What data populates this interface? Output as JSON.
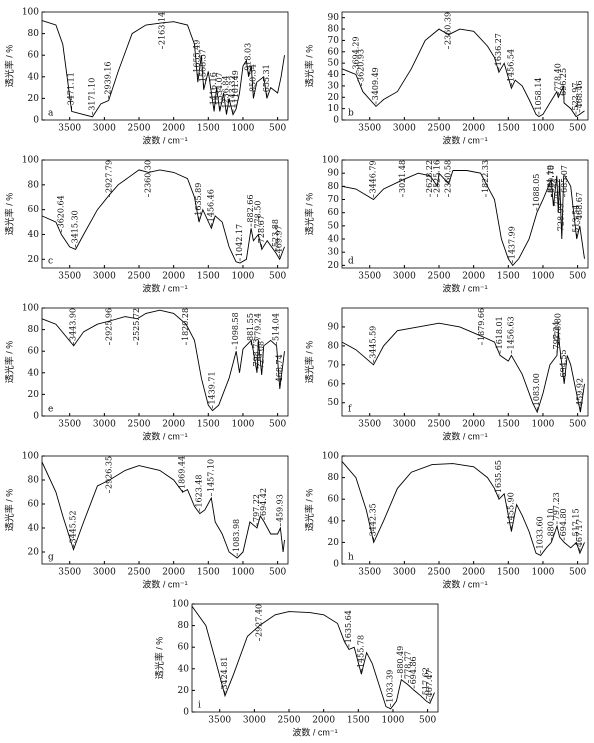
{
  "chart_data": [
    {
      "type": "line",
      "label": "a",
      "xlabel": "波数 / cm⁻¹",
      "ylabel": "透光率 / %",
      "xlim": [
        3900,
        350
      ],
      "ylim": [
        0,
        100
      ],
      "xticks": [
        3500,
        3000,
        2500,
        2000,
        1500,
        1000,
        500
      ],
      "yticks": [
        0,
        20,
        40,
        60,
        80,
        100
      ],
      "x": [
        3900,
        3700,
        3600,
        3471,
        3300,
        3171,
        3050,
        2939,
        2800,
        2600,
        2400,
        2163,
        2000,
        1800,
        1700,
        1651,
        1600,
        1567,
        1500,
        1416,
        1380,
        1334,
        1280,
        1237,
        1200,
        1143,
        1101,
        1050,
        1000,
        950,
        918,
        880,
        850,
        800,
        700,
        655,
        600,
        500,
        450,
        400
      ],
      "values": [
        92,
        88,
        70,
        8,
        5,
        3,
        15,
        18,
        45,
        80,
        88,
        90,
        91,
        88,
        70,
        35,
        60,
        28,
        45,
        8,
        30,
        8,
        25,
        5,
        20,
        5,
        10,
        25,
        50,
        55,
        40,
        50,
        20,
        35,
        40,
        20,
        30,
        25,
        40,
        60
      ],
      "peaks": [
        {
          "value": 3471.11,
          "label": "3471.11"
        },
        {
          "value": 3171.1,
          "label": "3171.10"
        },
        {
          "value": 2939.16,
          "label": "2939.16"
        },
        {
          "value": 2163.14,
          "label": "2163.14"
        },
        {
          "value": 1655.49,
          "label": "1655.49"
        },
        {
          "value": 1568.57,
          "label": "1568.57"
        },
        {
          "value": 1416.16,
          "label": "1416.16"
        },
        {
          "value": 1334.07,
          "label": "1334.07"
        },
        {
          "value": 1236.84,
          "label": "1236.84"
        },
        {
          "value": 1143.32,
          "label": "1143.32"
        },
        {
          "value": 1101.49,
          "label": "1101.49"
        },
        {
          "value": 918.03,
          "label": "918.03"
        },
        {
          "value": 850.34,
          "label": "850.34"
        },
        {
          "value": 655.31,
          "label": "655.31"
        }
      ]
    },
    {
      "type": "line",
      "label": "b",
      "xlabel": "波数 / cm⁻¹",
      "ylabel": "透光率 / %",
      "xlim": [
        3900,
        350
      ],
      "ylim": [
        0,
        95
      ],
      "xticks": [
        3500,
        3000,
        2500,
        2000,
        1500,
        1000,
        500
      ],
      "yticks": [
        0,
        10,
        20,
        30,
        40,
        50,
        60,
        70,
        80,
        90
      ],
      "x": [
        3900,
        3700,
        3600,
        3409,
        3300,
        3100,
        2900,
        2700,
        2500,
        2360,
        2200,
        2000,
        1800,
        1700,
        1636,
        1560,
        1456,
        1400,
        1300,
        1200,
        1100,
        1058,
        1000,
        900,
        800,
        778,
        700,
        696,
        600,
        522,
        468,
        400
      ],
      "values": [
        45,
        40,
        25,
        12,
        18,
        25,
        45,
        70,
        80,
        75,
        80,
        78,
        65,
        55,
        42,
        50,
        28,
        35,
        30,
        18,
        5,
        3,
        5,
        15,
        25,
        20,
        30,
        15,
        10,
        3,
        5,
        8
      ],
      "peaks": [
        {
          "value": 3694.29,
          "label": "3694.29"
        },
        {
          "value": 3620.93,
          "label": "3620.93"
        },
        {
          "value": 3409.49,
          "label": "3409.49"
        },
        {
          "value": 2360.39,
          "label": "2360.39"
        },
        {
          "value": 1636.27,
          "label": "1636.27"
        },
        {
          "value": 1456.54,
          "label": "1456.54"
        },
        {
          "value": 1058.14,
          "label": "1058.14"
        },
        {
          "value": 778.4,
          "label": "778.40"
        },
        {
          "value": 696.25,
          "label": "696.25"
        },
        {
          "value": 522.97,
          "label": "522.97"
        },
        {
          "value": 468.46,
          "label": "468.46"
        }
      ]
    },
    {
      "type": "line",
      "label": "c",
      "xlabel": "波数 / cm⁻¹",
      "ylabel": "透光率 / %",
      "xlim": [
        3900,
        350
      ],
      "ylim": [
        13,
        100
      ],
      "xticks": [
        3500,
        3000,
        2500,
        2000,
        1500,
        1000,
        500
      ],
      "yticks": [
        20,
        40,
        60,
        80,
        100
      ],
      "x": [
        3900,
        3700,
        3620,
        3500,
        3415,
        3300,
        3100,
        2927,
        2800,
        2500,
        2360,
        2200,
        2000,
        1800,
        1700,
        1635,
        1580,
        1456,
        1400,
        1300,
        1200,
        1100,
        1042,
        950,
        882,
        850,
        778,
        728,
        650,
        523,
        470,
        400
      ],
      "values": [
        55,
        50,
        40,
        30,
        28,
        40,
        60,
        72,
        80,
        92,
        90,
        92,
        90,
        85,
        70,
        50,
        60,
        45,
        55,
        50,
        30,
        18,
        17,
        20,
        45,
        35,
        40,
        28,
        35,
        25,
        20,
        30
      ],
      "peaks": [
        {
          "value": 3620.64,
          "label": "3620.64"
        },
        {
          "value": 3415.3,
          "label": "3415.30"
        },
        {
          "value": 2927.79,
          "label": "2927.79"
        },
        {
          "value": 2360.3,
          "label": "2360.30"
        },
        {
          "value": 1635.89,
          "label": "1635.89"
        },
        {
          "value": 1456.46,
          "label": "1456.46"
        },
        {
          "value": 1042.17,
          "label": "1042.17"
        },
        {
          "value": 882.66,
          "label": "882.66"
        },
        {
          "value": 778.5,
          "label": "778.50"
        },
        {
          "value": 728.67,
          "label": "728.67"
        },
        {
          "value": 523.88,
          "label": "523.88"
        },
        {
          "value": 469.97,
          "label": "469.97"
        }
      ]
    },
    {
      "type": "line",
      "label": "d",
      "xlabel": "波数 / cm⁻¹",
      "ylabel": "透光率 / %",
      "xlim": [
        3900,
        350
      ],
      "ylim": [
        18,
        100
      ],
      "xticks": [
        3500,
        3000,
        2500,
        2000,
        1500,
        1000,
        500
      ],
      "yticks": [
        20,
        30,
        40,
        50,
        60,
        70,
        80,
        90,
        100
      ],
      "x": [
        3900,
        3700,
        3446,
        3300,
        3021,
        2800,
        2628,
        2525,
        2500,
        2360,
        2300,
        2100,
        1900,
        1822,
        1700,
        1600,
        1500,
        1437,
        1350,
        1200,
        1088,
        1000,
        881,
        850,
        800,
        779,
        760,
        728,
        700,
        685,
        600,
        513,
        468,
        400
      ],
      "values": [
        80,
        78,
        70,
        78,
        85,
        90,
        88,
        80,
        90,
        82,
        92,
        92,
        90,
        82,
        70,
        40,
        25,
        20,
        25,
        40,
        60,
        70,
        85,
        65,
        88,
        60,
        85,
        40,
        88,
        88,
        80,
        40,
        50,
        25
      ],
      "peaks": [
        {
          "value": 3446.79,
          "label": "3446.79"
        },
        {
          "value": 3021.48,
          "label": "3021.48"
        },
        {
          "value": 2628.22,
          "label": "2628.22"
        },
        {
          "value": 2525.16,
          "label": "2525.16"
        },
        {
          "value": 2360.58,
          "label": "2360.58"
        },
        {
          "value": 1822.33,
          "label": "1822.33"
        },
        {
          "value": 1437.99,
          "label": "1437.99"
        },
        {
          "value": 1088.05,
          "label": "1088.05"
        },
        {
          "value": 881.19,
          "label": "881.19"
        },
        {
          "value": 869.7,
          "label": "869.70"
        },
        {
          "value": 779.22,
          "label": "779.22"
        },
        {
          "value": 728.99,
          "label": "728.99"
        },
        {
          "value": 685.07,
          "label": "685.07"
        },
        {
          "value": 513.54,
          "label": "513.54"
        },
        {
          "value": 468.67,
          "label": "468.67"
        }
      ]
    },
    {
      "type": "line",
      "label": "e",
      "xlabel": "波数 / cm⁻¹",
      "ylabel": "透光率 / %",
      "xlim": [
        3900,
        350
      ],
      "ylim": [
        0,
        100
      ],
      "xticks": [
        3500,
        3000,
        2500,
        2000,
        1500,
        1000,
        500
      ],
      "yticks": [
        0,
        20,
        40,
        60,
        80,
        100
      ],
      "x": [
        3900,
        3700,
        3443,
        3300,
        3100,
        2925,
        2700,
        2525,
        2400,
        2200,
        2000,
        1820,
        1700,
        1600,
        1500,
        1439,
        1350,
        1200,
        1098,
        1050,
        1000,
        881,
        850,
        798,
        779,
        729,
        700,
        600,
        514,
        468,
        400
      ],
      "values": [
        90,
        85,
        65,
        78,
        85,
        88,
        92,
        90,
        95,
        98,
        95,
        85,
        70,
        35,
        10,
        5,
        10,
        35,
        60,
        40,
        62,
        70,
        60,
        40,
        70,
        38,
        65,
        70,
        65,
        25,
        60
      ],
      "peaks": [
        {
          "value": 3443.9,
          "label": "3443.90"
        },
        {
          "value": 2925.96,
          "label": "2925.96"
        },
        {
          "value": 2525.72,
          "label": "2525.72"
        },
        {
          "value": 1820.28,
          "label": "1820.28"
        },
        {
          "value": 1439.71,
          "label": "1439.71"
        },
        {
          "value": 1098.58,
          "label": "1098.58"
        },
        {
          "value": 881.55,
          "label": "881.55"
        },
        {
          "value": 798.73,
          "label": "798.73"
        },
        {
          "value": 779.24,
          "label": "779.24"
        },
        {
          "value": 729.08,
          "label": "729.08"
        },
        {
          "value": 514.04,
          "label": "514.04"
        },
        {
          "value": 468.74,
          "label": "468.74"
        }
      ]
    },
    {
      "type": "line",
      "label": "f",
      "xlabel": "波数 / cm⁻¹",
      "ylabel": "透光率 / %",
      "xlim": [
        3900,
        350
      ],
      "ylim": [
        43,
        100
      ],
      "xticks": [
        3500,
        3000,
        2500,
        2000,
        1500,
        1000,
        500
      ],
      "yticks": [
        50,
        60,
        70,
        80,
        90
      ],
      "x": [
        3900,
        3700,
        3445,
        3300,
        3100,
        2800,
        2500,
        2200,
        1879,
        1700,
        1618,
        1500,
        1456,
        1300,
        1150,
        1083,
        1000,
        900,
        797,
        778,
        760,
        694,
        650,
        600,
        459,
        400
      ],
      "values": [
        82,
        78,
        70,
        80,
        88,
        90,
        92,
        90,
        85,
        82,
        75,
        72,
        75,
        65,
        50,
        45,
        55,
        70,
        75,
        88,
        80,
        60,
        75,
        70,
        45,
        60
      ],
      "peaks": [
        {
          "value": 3445.59,
          "label": "3445.59"
        },
        {
          "value": 1879.66,
          "label": "1879.66"
        },
        {
          "value": 1618.01,
          "label": "1618.01"
        },
        {
          "value": 1456.63,
          "label": "1456.63"
        },
        {
          "value": 1083,
          "label": "1083.00"
        },
        {
          "value": 797.24,
          "label": "797.24"
        },
        {
          "value": 778.8,
          "label": "778.80"
        },
        {
          "value": 694.55,
          "label": "694.55"
        },
        {
          "value": 459.92,
          "label": "459.92"
        }
      ]
    },
    {
      "type": "line",
      "label": "g",
      "xlabel": "波数 / cm⁻¹",
      "ylabel": "透光率 / %",
      "xlim": [
        3900,
        350
      ],
      "ylim": [
        10,
        100
      ],
      "xticks": [
        3500,
        3000,
        2500,
        2000,
        1500,
        1000,
        500
      ],
      "yticks": [
        20,
        40,
        60,
        80,
        100
      ],
      "x": [
        3900,
        3700,
        3600,
        3445,
        3300,
        3100,
        2926,
        2700,
        2500,
        2200,
        2000,
        1869,
        1800,
        1700,
        1623,
        1550,
        1457,
        1400,
        1300,
        1200,
        1083,
        1000,
        900,
        797,
        750,
        694,
        600,
        500,
        459,
        420,
        400
      ],
      "values": [
        95,
        70,
        50,
        22,
        45,
        75,
        80,
        88,
        92,
        88,
        80,
        70,
        72,
        58,
        52,
        55,
        65,
        45,
        35,
        20,
        15,
        20,
        45,
        40,
        50,
        45,
        35,
        35,
        40,
        20,
        30
      ],
      "peaks": [
        {
          "value": 3445.52,
          "label": "3445.52"
        },
        {
          "value": 2926.35,
          "label": "2926.35"
        },
        {
          "value": 1869.44,
          "label": "1869.44"
        },
        {
          "value": 1623.48,
          "label": "1623.48"
        },
        {
          "value": 1457.1,
          "label": "1457.10"
        },
        {
          "value": 1083.98,
          "label": "1083.98"
        },
        {
          "value": 797.22,
          "label": "797.22"
        },
        {
          "value": 694.42,
          "label": "694.42"
        },
        {
          "value": 459.93,
          "label": "459.93"
        }
      ]
    },
    {
      "type": "line",
      "label": "h",
      "xlabel": "波数 / cm⁻¹",
      "ylabel": "透光率 / %",
      "xlim": [
        3900,
        350
      ],
      "ylim": [
        0,
        100
      ],
      "xticks": [
        3500,
        3000,
        2500,
        2000,
        1500,
        1000,
        500
      ],
      "yticks": [
        0,
        20,
        40,
        60,
        80,
        100
      ],
      "x": [
        3900,
        3700,
        3550,
        3442,
        3300,
        3100,
        2900,
        2600,
        2300,
        2000,
        1800,
        1700,
        1635,
        1560,
        1455,
        1380,
        1300,
        1200,
        1100,
        1033,
        950,
        880,
        797,
        760,
        694,
        600,
        517,
        467,
        400
      ],
      "values": [
        95,
        80,
        50,
        20,
        40,
        70,
        85,
        92,
        93,
        90,
        80,
        70,
        60,
        65,
        30,
        55,
        45,
        30,
        10,
        8,
        15,
        20,
        35,
        25,
        20,
        15,
        20,
        10,
        20
      ],
      "peaks": [
        {
          "value": 3442.35,
          "label": "3442.35"
        },
        {
          "value": 1635.65,
          "label": "1635.65"
        },
        {
          "value": 1455.9,
          "label": "1455.90"
        },
        {
          "value": 1033.6,
          "label": "1033.60"
        },
        {
          "value": 880.1,
          "label": "880.10"
        },
        {
          "value": 797.23,
          "label": "797.23"
        },
        {
          "value": 694.8,
          "label": "694.80"
        },
        {
          "value": 517.15,
          "label": "517.15"
        },
        {
          "value": 467.17,
          "label": "467.17"
        }
      ]
    },
    {
      "type": "line",
      "label": "i",
      "xlabel": "波数 / cm⁻¹",
      "ylabel": "透光率 / %",
      "xlim": [
        3900,
        350
      ],
      "ylim": [
        0,
        100
      ],
      "xticks": [
        3500,
        3000,
        2500,
        2000,
        1500,
        1000,
        500
      ],
      "yticks": [
        0,
        20,
        40,
        60,
        80,
        100
      ],
      "x": [
        3900,
        3700,
        3550,
        3424,
        3300,
        3100,
        2927,
        2700,
        2500,
        2200,
        2000,
        1800,
        1700,
        1635,
        1560,
        1455,
        1380,
        1300,
        1200,
        1100,
        1033,
        950,
        880,
        778,
        694,
        600,
        517,
        467,
        400
      ],
      "values": [
        98,
        80,
        45,
        15,
        35,
        70,
        80,
        90,
        93,
        92,
        90,
        82,
        65,
        58,
        60,
        35,
        55,
        45,
        25,
        5,
        3,
        10,
        30,
        25,
        20,
        15,
        10,
        8,
        18
      ],
      "peaks": [
        {
          "value": 3424.81,
          "label": "3424.81"
        },
        {
          "value": 2927.4,
          "label": "2927.40"
        },
        {
          "value": 1635.64,
          "label": "1635.64"
        },
        {
          "value": 1455.78,
          "label": "1455.78"
        },
        {
          "value": 1033.39,
          "label": "1033.39"
        },
        {
          "value": 880.49,
          "label": "880.49"
        },
        {
          "value": 778.77,
          "label": "778.77"
        },
        {
          "value": 694.86,
          "label": "694.86"
        },
        {
          "value": 517.62,
          "label": "517.62"
        },
        {
          "value": 467.47,
          "label": "467.47"
        }
      ]
    }
  ]
}
